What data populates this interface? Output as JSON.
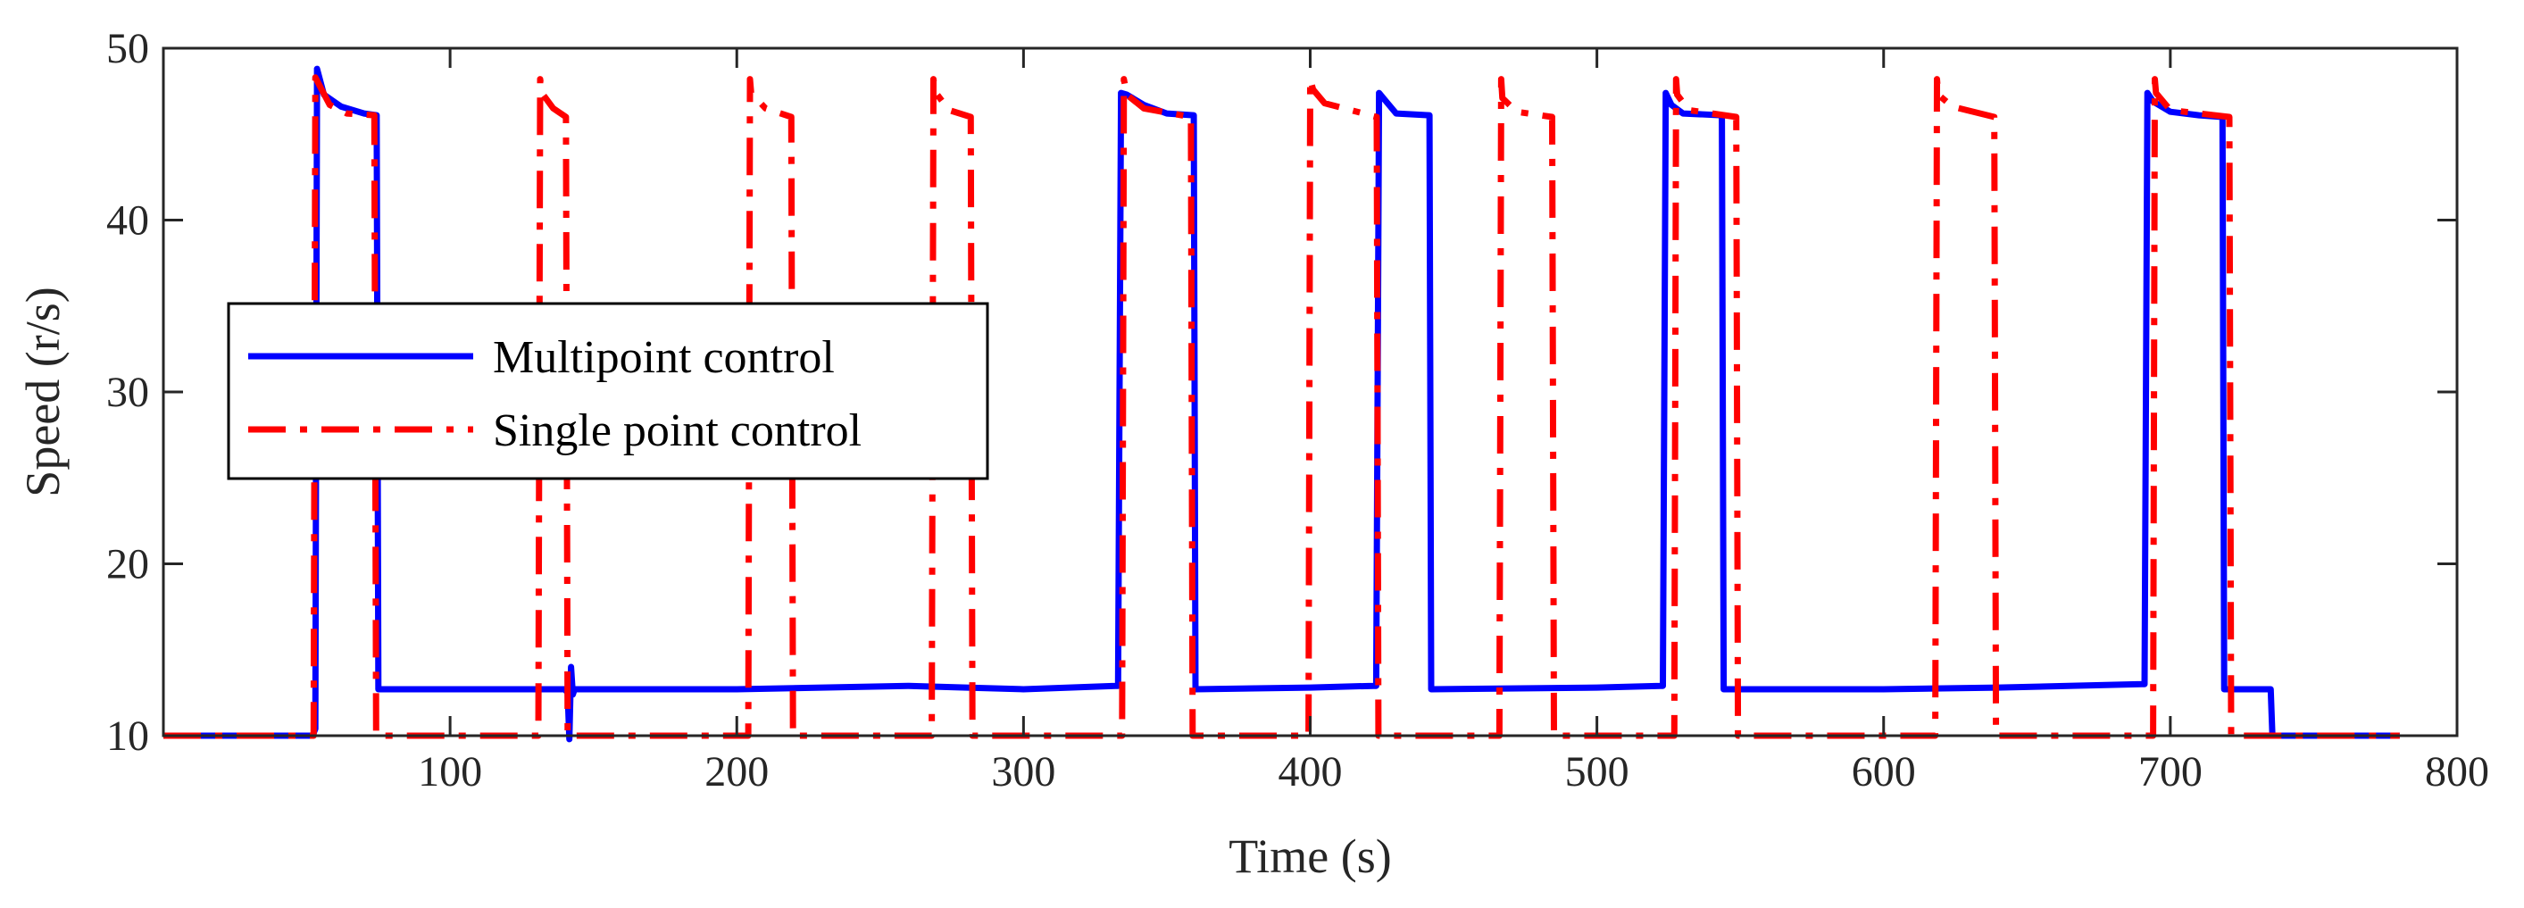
{
  "chart_data": {
    "type": "line",
    "title": "",
    "xlabel": "Time (s)",
    "ylabel": "Speed (r/s)",
    "xlim": [
      0,
      800
    ],
    "ylim": [
      10,
      50
    ],
    "xticks": [
      "100",
      "200",
      "300",
      "400",
      "500",
      "600",
      "700",
      "800"
    ],
    "yticks": [
      "10",
      "20",
      "30",
      "40",
      "50"
    ],
    "grid": false,
    "legend_position": "center-left",
    "series": [
      {
        "name": "Multipoint control",
        "color": "#0000FF",
        "style": "solid",
        "x": [
          0,
          52,
          53,
          53.6,
          56,
          62,
          70,
          74.4,
          75,
          100,
          140,
          141,
          141.6,
          142.2,
          142.8,
          143.4,
          144,
          200,
          260,
          280,
          300,
          332,
          333,
          334,
          336,
          342,
          350,
          359.4,
          360,
          400,
          422,
          423,
          424,
          426,
          430,
          441.6,
          442.2,
          500,
          522,
          523,
          524,
          526,
          530,
          543.6,
          544.2,
          600,
          640,
          690,
          691,
          692,
          694,
          700,
          710,
          718.2,
          718.8,
          730,
          735,
          735.6,
          760,
          780
        ],
        "y": [
          10,
          10,
          10.4,
          48.8,
          47.3,
          46.6,
          46.2,
          46.1,
          12.7,
          12.7,
          12.7,
          12.5,
          9.8,
          14.0,
          12.4,
          12.7,
          12.7,
          12.7,
          12.9,
          12.8,
          12.7,
          12.9,
          12.9,
          47.4,
          47.3,
          46.7,
          46.2,
          46.1,
          12.7,
          12.8,
          12.9,
          12.9,
          47.4,
          47.0,
          46.2,
          46.1,
          12.7,
          12.8,
          12.9,
          12.9,
          47.4,
          46.7,
          46.2,
          46.1,
          12.7,
          12.7,
          12.8,
          13.0,
          13.0,
          47.4,
          46.9,
          46.3,
          46.1,
          46.0,
          12.7,
          12.7,
          12.7,
          10,
          10,
          10
        ]
      },
      {
        "name": "Single point control",
        "color": "#FF0000",
        "style": "dashdot",
        "x": [
          0,
          52.4,
          53,
          58,
          64,
          73.6,
          74.2,
          130.8,
          131.4,
          132,
          136,
          140.4,
          141,
          204,
          204.6,
          205,
          210,
          219,
          219.6,
          268,
          268.6,
          269,
          274,
          281.6,
          282.2,
          334.4,
          335,
          336,
          342,
          358.4,
          359,
          399.4,
          400,
          401,
          405,
          423.2,
          423.8,
          466,
          466.6,
          467,
          472,
          484.4,
          485,
          527,
          527.6,
          528,
          532,
          548.6,
          549.2,
          618,
          618.6,
          619,
          624,
          638.6,
          639.2,
          694,
          694.6,
          695,
          700,
          720.6,
          721.2,
          780
        ],
        "y": [
          10,
          10,
          48.3,
          46.7,
          46.2,
          46.1,
          10,
          10,
          48.2,
          47.4,
          46.5,
          46.0,
          10,
          10,
          48.2,
          47.4,
          46.5,
          46.0,
          10,
          10,
          48.2,
          47.5,
          46.4,
          46.0,
          10,
          10,
          48.2,
          47.3,
          46.5,
          46.0,
          10,
          10,
          48.2,
          47.6,
          46.8,
          46.0,
          10,
          10,
          48.2,
          47.1,
          46.3,
          46.0,
          10,
          10,
          48.2,
          47.3,
          46.4,
          46.0,
          10,
          10,
          48.2,
          47.3,
          46.6,
          46.0,
          10,
          10,
          48.2,
          47.4,
          46.4,
          46.0,
          10,
          10
        ]
      }
    ]
  }
}
